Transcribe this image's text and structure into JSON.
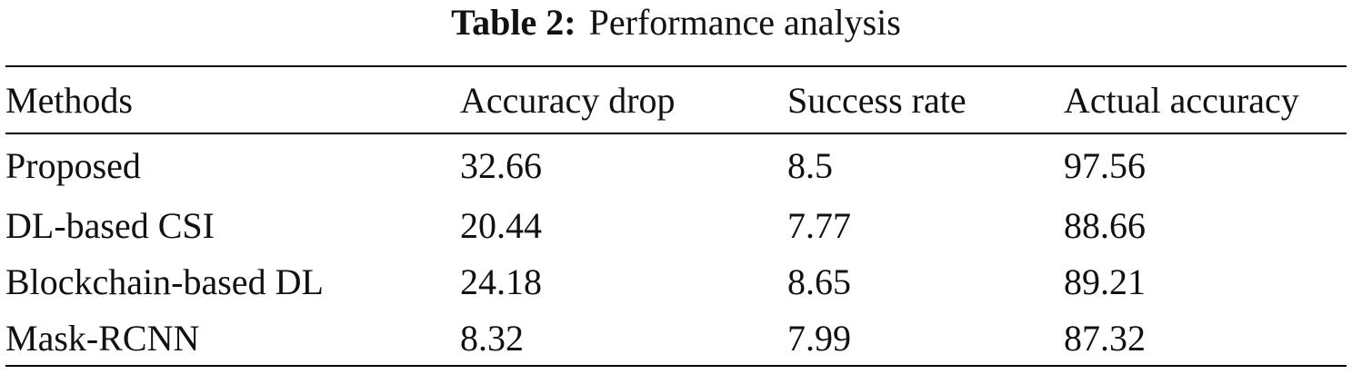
{
  "caption": {
    "label": "Table 2:",
    "title": "Performance analysis"
  },
  "table": {
    "headers": [
      "Methods",
      "Accuracy drop",
      "Success rate",
      "Actual accuracy"
    ],
    "rows": [
      [
        "Proposed",
        "32.66",
        "8.5",
        "97.56"
      ],
      [
        "DL-based CSI",
        "20.44",
        "7.77",
        "88.66"
      ],
      [
        "Blockchain-based DL",
        "24.18",
        "8.65",
        "89.21"
      ],
      [
        "Mask-RCNN",
        "8.32",
        "7.99",
        "87.32"
      ]
    ]
  }
}
